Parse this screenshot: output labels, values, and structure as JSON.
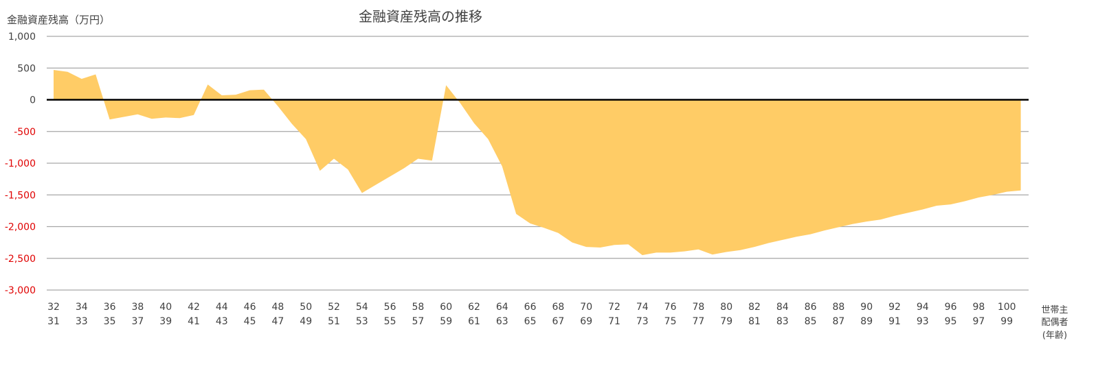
{
  "chart_data": {
    "type": "area",
    "title": "金融資産残高の推移",
    "ylabel": "金融資産残高（万円）",
    "x_axis_title": [
      "世帯主",
      "配偶者",
      "(年齢)"
    ],
    "ylim": [
      -3000,
      1000
    ],
    "yticks": [
      1000,
      500,
      0,
      -500,
      -1000,
      -1500,
      -2000,
      -2500,
      -3000
    ],
    "ytick_labels": [
      "1,000",
      "500",
      "0",
      "-500",
      "-1,000",
      "-1,500",
      "-2,000",
      "-2,500",
      "-3,000"
    ],
    "x_head_age": [
      32,
      33,
      34,
      35,
      36,
      37,
      38,
      39,
      40,
      41,
      42,
      43,
      44,
      45,
      46,
      47,
      48,
      49,
      50,
      51,
      52,
      53,
      54,
      55,
      56,
      57,
      58,
      59,
      60,
      61,
      62,
      63,
      64,
      65,
      66,
      67,
      68,
      69,
      70,
      71,
      72,
      73,
      74,
      75,
      76,
      77,
      78,
      79,
      80,
      81,
      82,
      83,
      84,
      85,
      86,
      87,
      88,
      89,
      90,
      91,
      92,
      93,
      94,
      95,
      96,
      97,
      98,
      99,
      100,
      101
    ],
    "x_spouse_age": [
      31,
      32,
      33,
      34,
      35,
      36,
      37,
      38,
      39,
      40,
      41,
      42,
      43,
      44,
      45,
      46,
      47,
      48,
      49,
      50,
      51,
      52,
      53,
      54,
      55,
      56,
      57,
      58,
      59,
      60,
      61,
      62,
      63,
      64,
      65,
      66,
      67,
      68,
      69,
      70,
      71,
      72,
      73,
      74,
      75,
      76,
      77,
      78,
      79,
      80,
      81,
      82,
      83,
      84,
      85,
      86,
      87,
      88,
      89,
      90,
      91,
      92,
      93,
      94,
      95,
      96,
      97,
      98,
      99,
      100
    ],
    "values": [
      470,
      440,
      330,
      400,
      -310,
      -270,
      -230,
      -300,
      -280,
      -290,
      -240,
      240,
      70,
      80,
      150,
      160,
      -100,
      -380,
      -620,
      -1120,
      -930,
      -1100,
      -1470,
      -1340,
      -1210,
      -1080,
      -930,
      -960,
      230,
      -50,
      -370,
      -620,
      -1050,
      -1800,
      -1950,
      -2020,
      -2100,
      -2250,
      -2320,
      -2330,
      -2290,
      -2280,
      -2450,
      -2410,
      -2410,
      -2390,
      -2360,
      -2440,
      -2400,
      -2370,
      -2320,
      -2260,
      -2210,
      -2160,
      -2120,
      -2060,
      -2010,
      -1960,
      -1920,
      -1890,
      -1830,
      -1780,
      -1730,
      -1670,
      -1650,
      -1600,
      -1540,
      -1500,
      -1450,
      -1430
    ],
    "head_tick_labels": [
      "32",
      "34",
      "36",
      "38",
      "40",
      "42",
      "44",
      "46",
      "48",
      "50",
      "52",
      "54",
      "56",
      "58",
      "60",
      "62",
      "64",
      "66",
      "68",
      "70",
      "72",
      "74",
      "76",
      "78",
      "80",
      "82",
      "84",
      "86",
      "88",
      "90",
      "92",
      "94",
      "96",
      "98",
      "100"
    ],
    "spouse_tick_labels": [
      "31",
      "33",
      "35",
      "37",
      "39",
      "41",
      "43",
      "45",
      "47",
      "49",
      "51",
      "53",
      "55",
      "57",
      "59",
      "61",
      "63",
      "65",
      "67",
      "69",
      "71",
      "73",
      "75",
      "77",
      "79",
      "81",
      "83",
      "85",
      "87",
      "89",
      "91",
      "93",
      "95",
      "97",
      "99"
    ],
    "grid": true,
    "legend": "none",
    "colors": {
      "area": "#FFCC66",
      "zero_line": "#000000",
      "grid": "#a6a6a6",
      "tick_text": "#404040",
      "negative_tick_text": "#e00000",
      "title_text": "#404040"
    }
  }
}
